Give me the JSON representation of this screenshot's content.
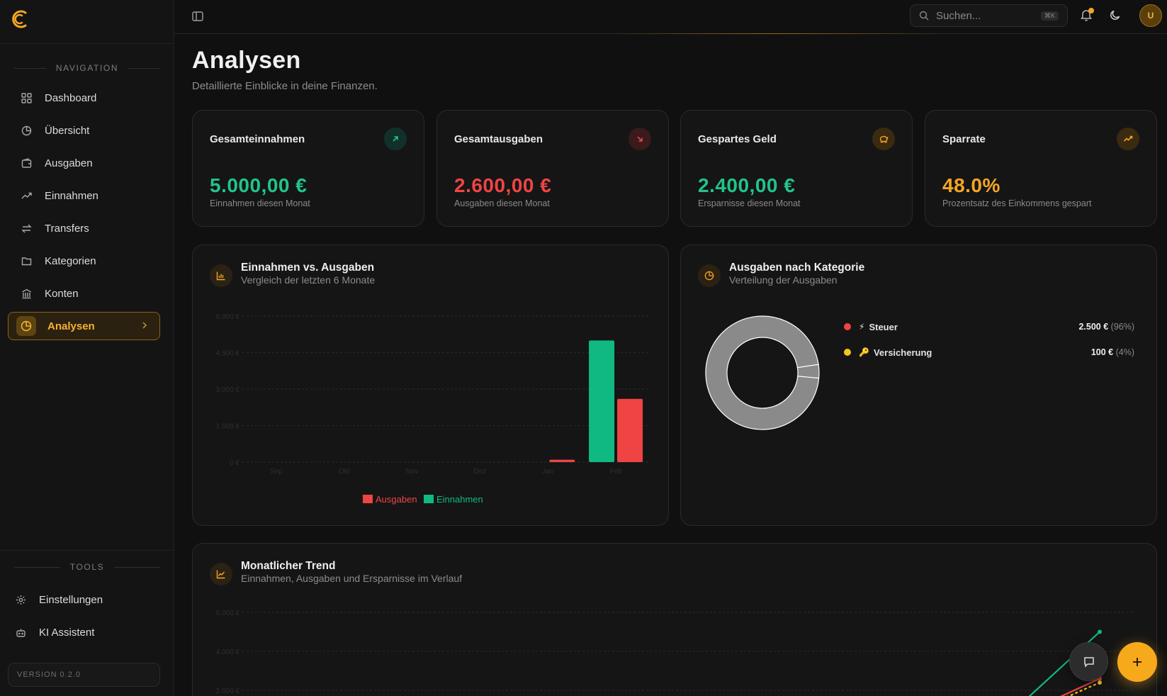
{
  "sidebar": {
    "nav_section": "NAVIGATION",
    "items": [
      {
        "label": "Dashboard",
        "icon": "grid-icon"
      },
      {
        "label": "Übersicht",
        "icon": "pie-icon"
      },
      {
        "label": "Ausgaben",
        "icon": "wallet-icon"
      },
      {
        "label": "Einnahmen",
        "icon": "trending-up-icon"
      },
      {
        "label": "Transfers",
        "icon": "arrows-icon"
      },
      {
        "label": "Kategorien",
        "icon": "folder-icon"
      },
      {
        "label": "Konten",
        "icon": "bank-icon"
      },
      {
        "label": "Analysen",
        "icon": "pie-icon",
        "active": true
      }
    ],
    "tools_section": "TOOLS",
    "tools": [
      {
        "label": "Einstellungen",
        "icon": "gear-icon"
      },
      {
        "label": "KI Assistent",
        "icon": "bot-icon"
      }
    ],
    "version": "VERSION 0.2.0"
  },
  "topbar": {
    "search_placeholder": "Suchen...",
    "search_shortcut": "⌘K",
    "avatar_initial": "U"
  },
  "page": {
    "title": "Analysen",
    "subtitle": "Detaillierte Einblicke in deine Finanzen."
  },
  "stats": [
    {
      "title": "Gesamteinnahmen",
      "value": "5.000,00 €",
      "sub": "Einnahmen diesen Monat",
      "color": "#21c48a",
      "icon": "arrow-up-right-icon"
    },
    {
      "title": "Gesamtausgaben",
      "value": "2.600,00 €",
      "sub": "Ausgaben diesen Monat",
      "color": "#ef4444",
      "icon": "arrow-down-right-icon"
    },
    {
      "title": "Gespartes Geld",
      "value": "2.400,00 €",
      "sub": "Ersparnisse diesen Monat",
      "color": "#21c48a",
      "icon": "piggy-bank-icon"
    },
    {
      "title": "Sparrate",
      "value": "48.0%",
      "sub": "Prozentsatz des Einkommens gespart",
      "color": "#f5a623",
      "icon": "trending-up-icon"
    }
  ],
  "income_vs_expense": {
    "title": "Einnahmen vs. Ausgaben",
    "subtitle": "Vergleich der letzten 6 Monate",
    "legend": {
      "expenses": "Ausgaben",
      "income": "Einnahmen"
    }
  },
  "category_panel": {
    "title": "Ausgaben nach Kategorie",
    "subtitle": "Verteilung der Ausgaben",
    "items": [
      {
        "name": "Steuer",
        "emoji": "⚡",
        "amount": "2.500 €",
        "pct": "(96%)",
        "color": "#ef4444"
      },
      {
        "name": "Versicherung",
        "emoji": "🔑",
        "amount": "100 €",
        "pct": "(4%)",
        "color": "#f5c518"
      }
    ]
  },
  "trend_panel": {
    "title": "Monatlicher Trend",
    "subtitle": "Einnahmen, Ausgaben und Ersparnisse im Verlauf"
  },
  "chart_data": [
    {
      "type": "bar",
      "categories": [
        "Sep",
        "Okt",
        "Nov",
        "Dez",
        "Jan",
        "Feb"
      ],
      "series": [
        {
          "name": "Ausgaben",
          "color": "#ef4444",
          "values": [
            0,
            0,
            0,
            0,
            100,
            2600
          ]
        },
        {
          "name": "Einnahmen",
          "color": "#10b981",
          "values": [
            0,
            0,
            0,
            0,
            0,
            5000
          ]
        }
      ],
      "yticks": [
        "0 €",
        "1.500 €",
        "3.000 €",
        "4.500 €",
        "6.000 €"
      ],
      "ylim": [
        0,
        6000
      ],
      "legend": "bottom"
    },
    {
      "type": "pie",
      "categories": [
        "Steuer",
        "Versicherung"
      ],
      "values": [
        2500,
        100
      ],
      "donut": true,
      "slice_color": "#8a8a8a"
    },
    {
      "type": "line",
      "yticks": [
        "6.000 €",
        "4.000 €",
        "2.000 €"
      ],
      "ylim": [
        0,
        6000
      ],
      "series": [
        {
          "name": "Einnahmen",
          "color": "#10b981",
          "values": [
            0,
            0,
            0,
            0,
            0,
            5000
          ]
        },
        {
          "name": "Ausgaben",
          "color": "#ef4444",
          "values": [
            0,
            0,
            0,
            0,
            100,
            2600
          ]
        },
        {
          "name": "Ersparnisse",
          "color": "#f5c518",
          "values": [
            0,
            0,
            0,
            0,
            0,
            2400
          ]
        }
      ]
    }
  ]
}
